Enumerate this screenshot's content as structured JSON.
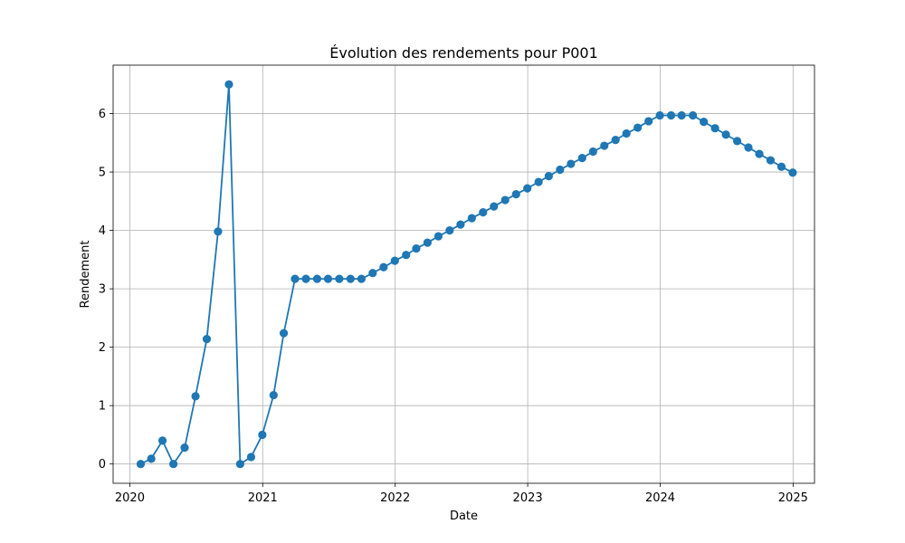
{
  "chart_data": {
    "type": "line",
    "title": "Évolution des rendements pour P001",
    "xlabel": "Date",
    "ylabel": "Rendement",
    "x_axis": "date",
    "xlim": [
      "2019-11-16",
      "2025-03-01"
    ],
    "ylim": [
      -0.33,
      6.83
    ],
    "xticks": [
      {
        "label": "2020",
        "date": "2020-01-01"
      },
      {
        "label": "2021",
        "date": "2021-01-01"
      },
      {
        "label": "2022",
        "date": "2022-01-01"
      },
      {
        "label": "2023",
        "date": "2023-01-01"
      },
      {
        "label": "2024",
        "date": "2024-01-01"
      },
      {
        "label": "2025",
        "date": "2025-01-01"
      }
    ],
    "yticks": [
      0,
      1,
      2,
      3,
      4,
      5,
      6
    ],
    "grid": true,
    "marker": "circle",
    "color": "#1f77b4",
    "series": [
      {
        "x": [
          "2020-01-31",
          "2020-02-29",
          "2020-03-31",
          "2020-04-30",
          "2020-05-31",
          "2020-06-30",
          "2020-07-31",
          "2020-08-31",
          "2020-09-30",
          "2020-10-31",
          "2020-11-30",
          "2020-12-31",
          "2021-01-31",
          "2021-02-28",
          "2021-03-31",
          "2021-04-30",
          "2021-05-31",
          "2021-06-30",
          "2021-07-31",
          "2021-08-31",
          "2021-09-30",
          "2021-10-31",
          "2021-11-30",
          "2021-12-31",
          "2022-01-31",
          "2022-02-28",
          "2022-03-31",
          "2022-04-30",
          "2022-05-31",
          "2022-06-30",
          "2022-07-31",
          "2022-08-31",
          "2022-09-30",
          "2022-10-31",
          "2022-11-30",
          "2022-12-31",
          "2023-01-31",
          "2023-02-28",
          "2023-03-31",
          "2023-04-30",
          "2023-05-31",
          "2023-06-30",
          "2023-07-31",
          "2023-08-31",
          "2023-09-30",
          "2023-10-31",
          "2023-11-30",
          "2023-12-31",
          "2024-01-31",
          "2024-02-29",
          "2024-03-31",
          "2024-04-30",
          "2024-05-31",
          "2024-06-30",
          "2024-07-31",
          "2024-08-31",
          "2024-09-30",
          "2024-10-31",
          "2024-11-30",
          "2024-12-31"
        ],
        "y": [
          0.0,
          0.09,
          0.4,
          0.0,
          0.28,
          1.16,
          2.14,
          3.98,
          6.5,
          0.0,
          0.12,
          0.5,
          1.18,
          2.24,
          3.17,
          3.17,
          3.17,
          3.17,
          3.17,
          3.17,
          3.17,
          3.27,
          3.37,
          3.48,
          3.58,
          3.69,
          3.79,
          3.9,
          4.0,
          4.1,
          4.21,
          4.31,
          4.41,
          4.52,
          4.62,
          4.72,
          4.83,
          4.93,
          5.04,
          5.14,
          5.24,
          5.35,
          5.45,
          5.55,
          5.66,
          5.76,
          5.87,
          5.97,
          5.97,
          5.97,
          5.97,
          5.86,
          5.75,
          5.64,
          5.53,
          5.42,
          5.31,
          5.2,
          5.09,
          4.99
        ]
      }
    ]
  }
}
